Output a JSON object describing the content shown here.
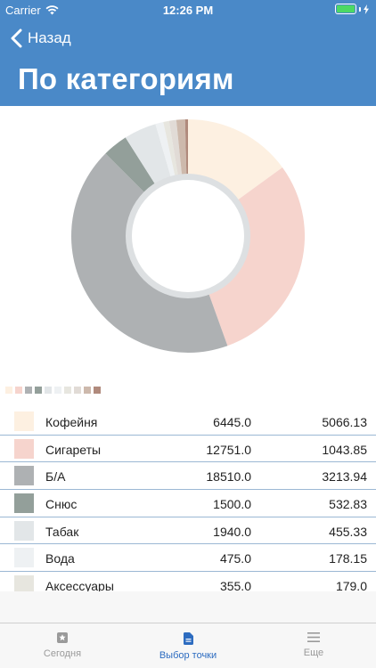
{
  "status_bar": {
    "carrier": "Carrier",
    "time": "12:26 PM"
  },
  "nav": {
    "back_label": "Назад",
    "title": "По категориям"
  },
  "colors": {
    "header": "#4a89c8",
    "accent": "#2d6cc0",
    "battery": "#4cd964"
  },
  "chart_data": {
    "type": "pie",
    "variant": "donut",
    "categories": [
      "Кофейня",
      "Сигареты",
      "Б/А",
      "Снюс",
      "Табак",
      "Вода",
      "Аксессуары",
      "",
      "",
      ""
    ],
    "values": [
      5066.13,
      1043.85,
      3213.94,
      532.83,
      455.33,
      178.15,
      179.0,
      0,
      0,
      0
    ],
    "slices": [
      {
        "value": 15.0,
        "color": "#fdf0e1"
      },
      {
        "value": 29.5,
        "color": "#f6d4cd"
      },
      {
        "value": 43.0,
        "color": "#aeb1b3"
      },
      {
        "value": 3.5,
        "color": "#939f9a"
      },
      {
        "value": 4.5,
        "color": "#e2e6e8"
      },
      {
        "value": 1.1,
        "color": "#eef1f3"
      },
      {
        "value": 0.8,
        "color": "#e7e6df"
      },
      {
        "value": 1.0,
        "color": "#e1dbd6"
      },
      {
        "value": 1.2,
        "color": "#cdb9ac"
      },
      {
        "value": 0.4,
        "color": "#b08a7c"
      }
    ]
  },
  "list": {
    "rows": [
      {
        "name": "Кофейня",
        "qty": "6445.0",
        "sum": "5066.13",
        "color": "#fdf0e1"
      },
      {
        "name": "Сигареты",
        "qty": "12751.0",
        "sum": "1043.85",
        "color": "#f6d4cd"
      },
      {
        "name": "Б/А",
        "qty": "18510.0",
        "sum": "3213.94",
        "color": "#aeb1b3"
      },
      {
        "name": "Снюс",
        "qty": "1500.0",
        "sum": "532.83",
        "color": "#939f9a"
      },
      {
        "name": "Табак",
        "qty": "1940.0",
        "sum": "455.33",
        "color": "#e2e6e8"
      },
      {
        "name": "Вода",
        "qty": "475.0",
        "sum": "178.15",
        "color": "#eef1f3"
      },
      {
        "name": "Аксессуары",
        "qty": "355.0",
        "sum": "179.0",
        "color": "#e7e6df"
      }
    ]
  },
  "tabs": [
    {
      "label": "Сегодня",
      "icon": "star-icon",
      "active": false
    },
    {
      "label": "Выбор точки",
      "icon": "document-icon",
      "active": true
    },
    {
      "label": "Еще",
      "icon": "menu-icon",
      "active": false
    }
  ]
}
